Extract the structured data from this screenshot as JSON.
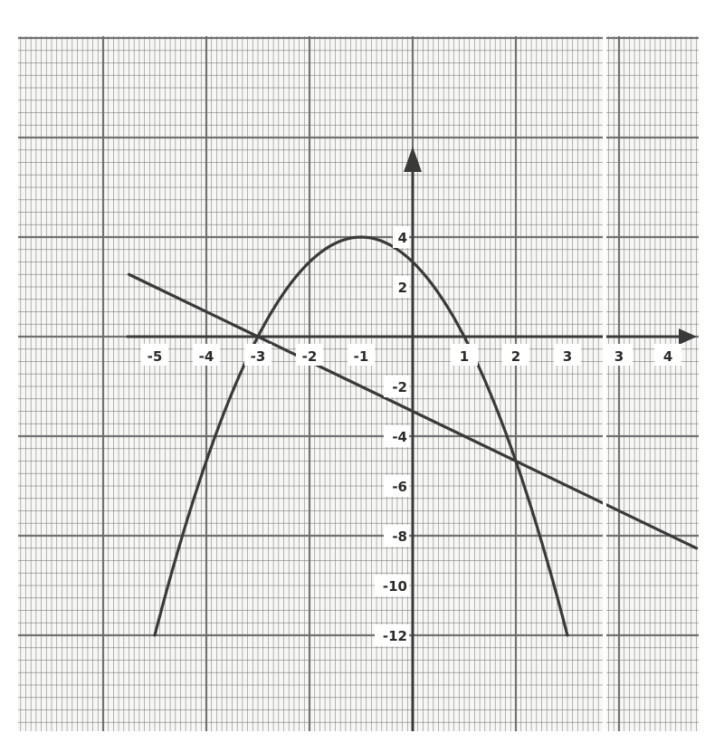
{
  "chart_data": {
    "type": "line",
    "grid": true,
    "x_ticks": [
      "-5",
      "-4",
      "-3",
      "-2",
      "-1",
      "1",
      "2",
      "3",
      "3",
      "4"
    ],
    "y_ticks": [
      "4",
      "2",
      "-2",
      "-4",
      "-6",
      "-8",
      "-10",
      "-12"
    ],
    "xlim": [
      -5.5,
      5.5
    ],
    "ylim": [
      -15.5,
      8.5
    ],
    "series": [
      {
        "kind": "curve",
        "x": [
          -5,
          -4.5,
          -4,
          -3.5,
          -3,
          -2.5,
          -2,
          -1.5,
          -1,
          -0.5,
          0,
          0.5,
          1,
          1.5,
          2,
          2.5,
          3
        ],
        "y": [
          -12,
          -8.25,
          -5,
          -2.25,
          0,
          1.75,
          3,
          3.75,
          4,
          3.75,
          3,
          1.75,
          0,
          -2.25,
          -5,
          -8.25,
          -12
        ]
      },
      {
        "kind": "line",
        "x": [
          -5.5,
          5.5
        ],
        "y": [
          2.5,
          -8.5
        ]
      }
    ],
    "colors": {
      "paper": "#f7f7f5",
      "grid": "#6b6b6b",
      "ink": "#3a3a3a"
    }
  }
}
